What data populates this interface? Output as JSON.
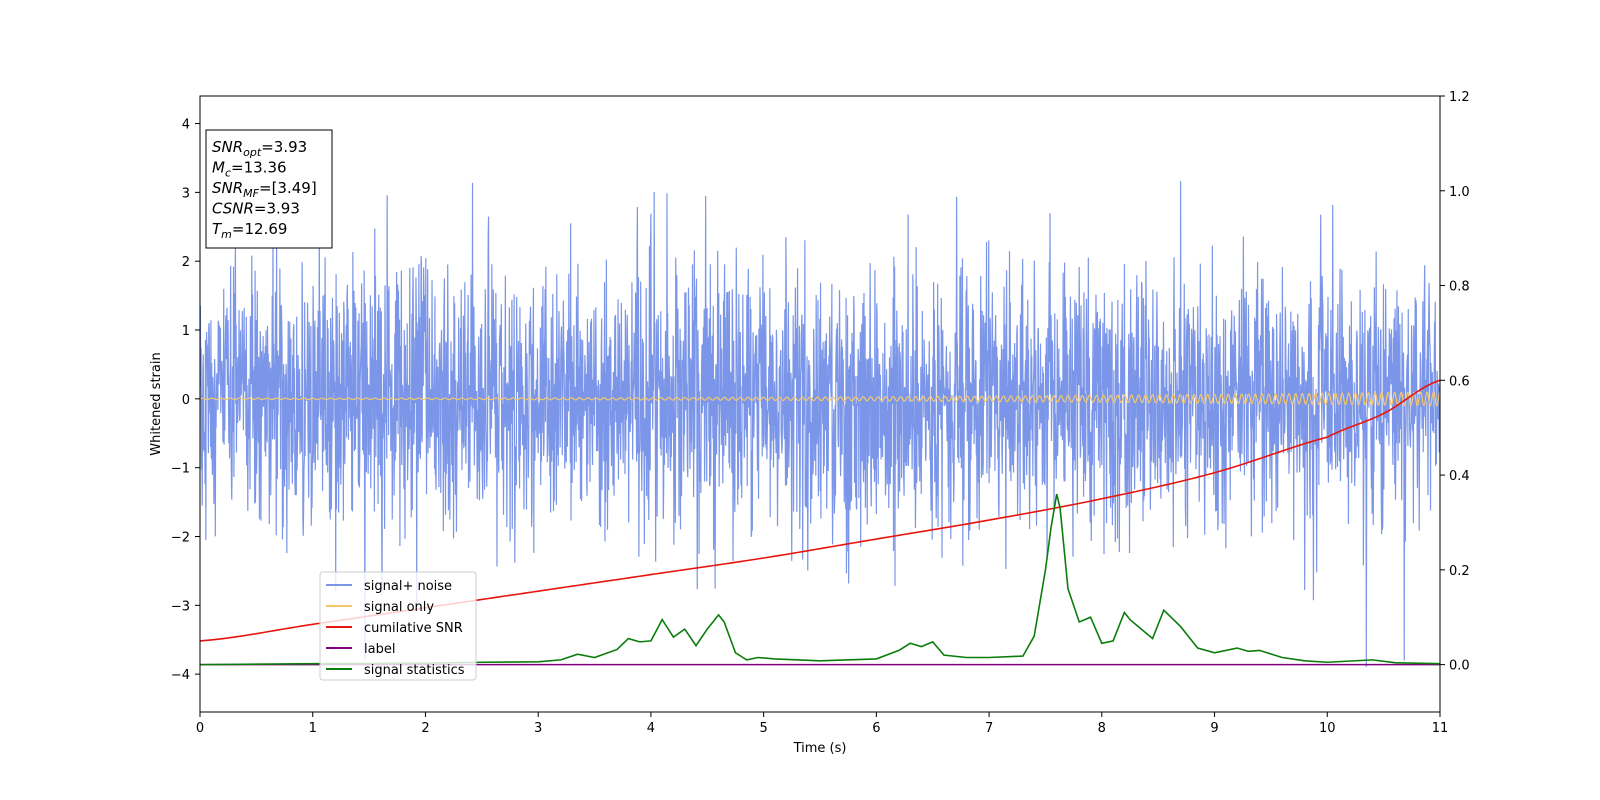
{
  "chart_data": {
    "type": "line",
    "xlabel": "Time (s)",
    "ylabel": "Whitened strain",
    "xlim": [
      0,
      11
    ],
    "ylim": [
      -4.55,
      4.4
    ],
    "y2lim": [
      -0.1,
      1.2
    ],
    "xticks": [
      0,
      1,
      2,
      3,
      4,
      5,
      6,
      7,
      8,
      9,
      10,
      11
    ],
    "yticks": [
      -4,
      -3,
      -2,
      -1,
      0,
      1,
      2,
      3,
      4
    ],
    "y2ticks": [
      0.0,
      0.2,
      0.4,
      0.6,
      0.8,
      1.0,
      1.2
    ],
    "y2tick_labels": [
      "0.0",
      "0.2",
      "0.4",
      "0.6",
      "0.8",
      "1.0",
      "1.2"
    ],
    "grid": false,
    "legend_position": "lower-left",
    "annotation": [
      {
        "base": "SNR",
        "sub": "opt",
        "value": "=3.93"
      },
      {
        "base": "M",
        "sub": "c",
        "value": "=13.36"
      },
      {
        "base": "SNR",
        "sub": "MF",
        "value": "=[3.49]"
      },
      {
        "base": "CSNR",
        "sub": "",
        "value": "=3.93"
      },
      {
        "base": "T",
        "sub": "m",
        "value": "=12.69"
      }
    ],
    "series": [
      {
        "name": "signal+ noise",
        "axis": "left",
        "color": "#7b96e8",
        "kind": "noise",
        "sigma": 0.95,
        "range": [
          -4.2,
          4.0
        ]
      },
      {
        "name": "signal only",
        "axis": "left",
        "color": "#f5c76b",
        "kind": "chirp",
        "amplitude_start": 0.01,
        "amplitude_end": 0.1
      },
      {
        "name": "cumilative SNR",
        "axis": "right",
        "color": "#e8150e",
        "x": [
          0,
          1,
          2,
          3,
          4,
          5,
          6,
          7,
          8,
          9,
          10,
          10.5,
          11
        ],
        "y": [
          0.05,
          0.085,
          0.12,
          0.155,
          0.19,
          0.225,
          0.265,
          0.305,
          0.35,
          0.405,
          0.48,
          0.53,
          0.6
        ]
      },
      {
        "name": "label",
        "axis": "right",
        "color": "#800080",
        "x": [
          0,
          11
        ],
        "y": [
          0.0,
          0.0
        ]
      },
      {
        "name": "signal statistics",
        "axis": "right",
        "color": "#0b7d0b",
        "x": [
          0,
          1,
          2,
          2.5,
          3,
          3.2,
          3.35,
          3.5,
          3.7,
          3.8,
          3.9,
          4.0,
          4.1,
          4.2,
          4.3,
          4.4,
          4.5,
          4.6,
          4.65,
          4.75,
          4.85,
          4.95,
          5.1,
          5.5,
          6.0,
          6.2,
          6.3,
          6.4,
          6.5,
          6.6,
          6.8,
          7.0,
          7.3,
          7.4,
          7.5,
          7.55,
          7.6,
          7.63,
          7.7,
          7.8,
          7.9,
          8.0,
          8.1,
          8.2,
          8.25,
          8.35,
          8.45,
          8.55,
          8.7,
          8.85,
          9.0,
          9.2,
          9.3,
          9.4,
          9.6,
          9.8,
          10.0,
          10.4,
          10.6,
          11.0
        ],
        "y": [
          0.0,
          0.002,
          0.003,
          0.005,
          0.006,
          0.01,
          0.022,
          0.015,
          0.032,
          0.055,
          0.048,
          0.05,
          0.095,
          0.058,
          0.075,
          0.04,
          0.075,
          0.105,
          0.09,
          0.025,
          0.01,
          0.015,
          0.012,
          0.008,
          0.012,
          0.03,
          0.045,
          0.038,
          0.048,
          0.02,
          0.015,
          0.015,
          0.018,
          0.06,
          0.2,
          0.29,
          0.36,
          0.33,
          0.16,
          0.09,
          0.1,
          0.045,
          0.05,
          0.11,
          0.095,
          0.075,
          0.055,
          0.115,
          0.08,
          0.035,
          0.025,
          0.035,
          0.028,
          0.03,
          0.015,
          0.008,
          0.005,
          0.01,
          0.004,
          0.002
        ]
      }
    ]
  }
}
